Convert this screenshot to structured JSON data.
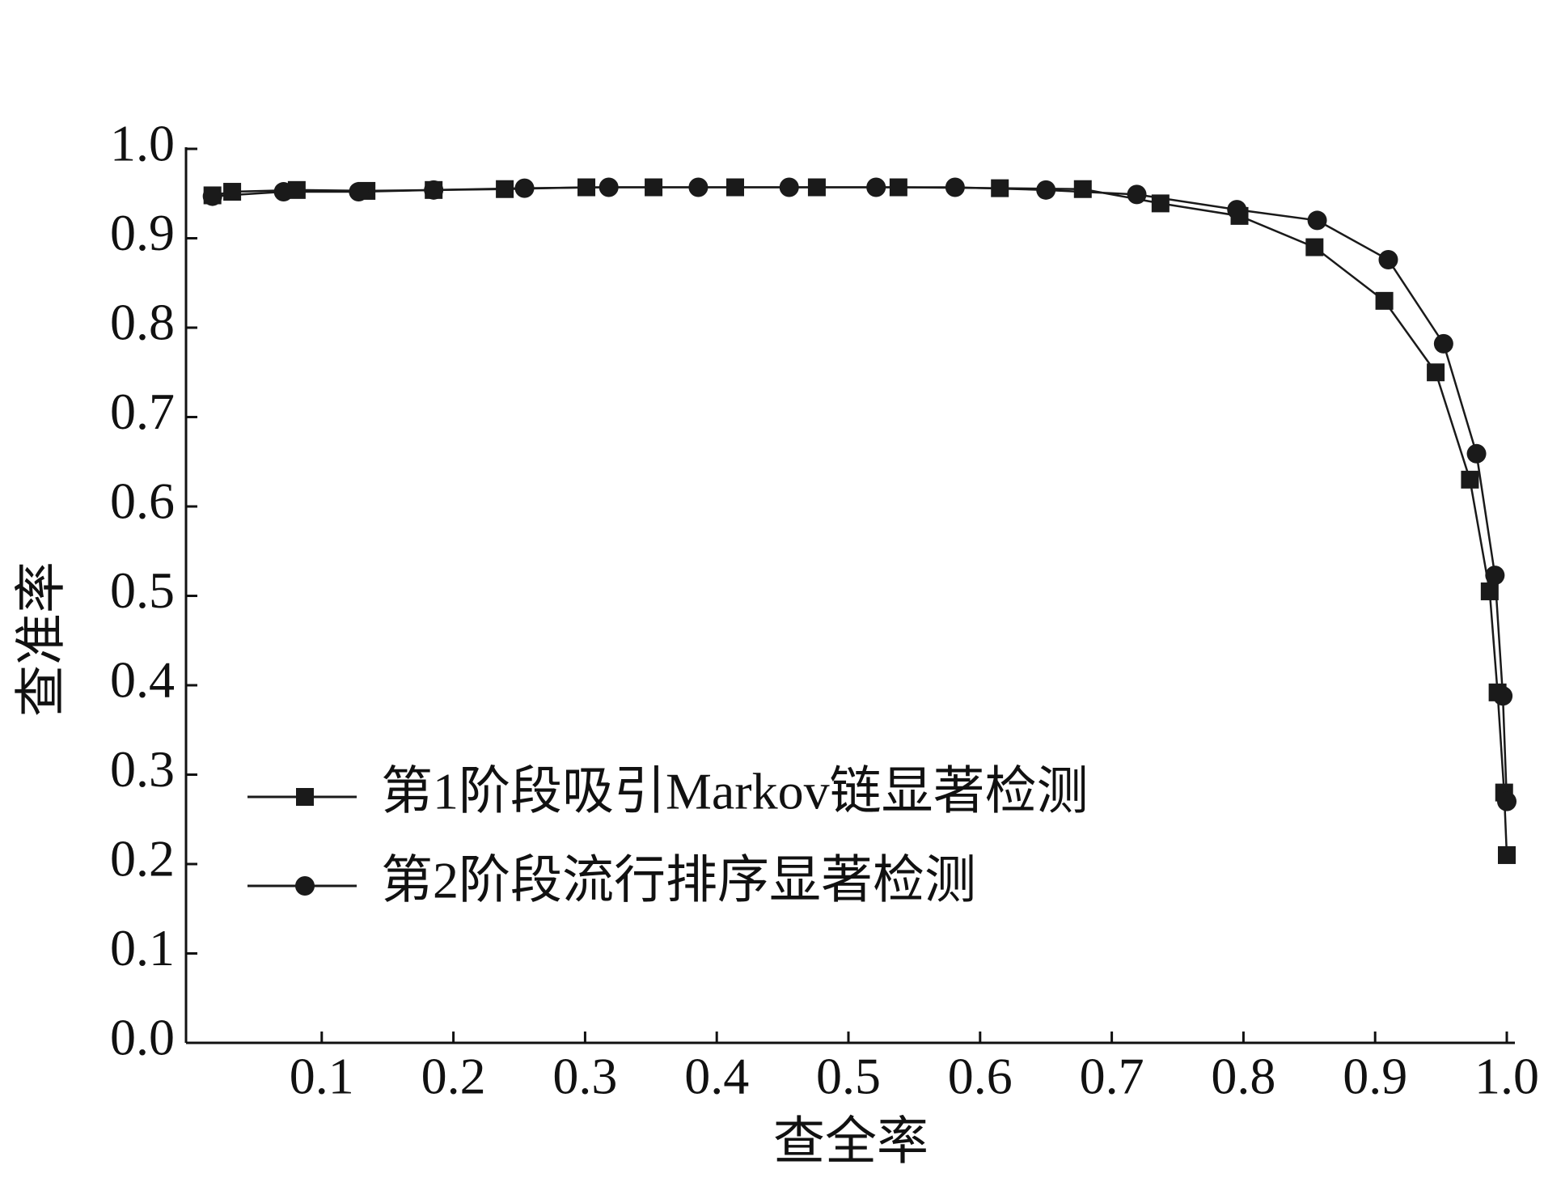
{
  "chart_data": {
    "type": "line",
    "x_label": "查全率",
    "y_label": "查准率",
    "xlim": [
      0,
      1.0
    ],
    "ylim": [
      0,
      1.0
    ],
    "xticks": [
      0.1,
      0.2,
      0.3,
      0.4,
      0.5,
      0.6,
      0.7,
      0.8,
      0.9,
      {
        "value": 1.0,
        "label": "1.0"
      }
    ],
    "yticks": [
      {
        "value": 0,
        "label": "0.0"
      },
      0.1,
      0.2,
      0.3,
      0.4,
      0.5,
      0.6,
      0.7,
      0.8,
      0.9,
      {
        "value": 1.0,
        "label": "1.0"
      }
    ],
    "legend": "lower left",
    "series": [
      {
        "name": "第1阶段吸引Markov链显著检测",
        "color": "#1a1a1a",
        "marker": "square",
        "x": [
          0.017,
          0.032,
          0.081,
          0.134,
          0.185,
          0.239,
          0.301,
          0.352,
          0.414,
          0.476,
          0.538,
          0.615,
          0.678,
          0.737,
          0.797,
          0.854,
          0.907,
          0.946,
          0.972,
          0.987,
          0.993,
          0.998,
          1.0
        ],
        "values": [
          0.948,
          0.952,
          0.954,
          0.953,
          0.954,
          0.955,
          0.957,
          0.957,
          0.957,
          0.957,
          0.957,
          0.956,
          0.955,
          0.939,
          0.925,
          0.89,
          0.83,
          0.75,
          0.63,
          0.505,
          0.392,
          0.28,
          0.21
        ]
      },
      {
        "name": "第2阶段流行排序显著检测",
        "color": "#1a1a1a",
        "marker": "circle",
        "x": [
          0.017,
          0.071,
          0.128,
          0.185,
          0.254,
          0.318,
          0.386,
          0.455,
          0.521,
          0.581,
          0.65,
          0.719,
          0.795,
          0.856,
          0.91,
          0.952,
          0.977,
          0.991,
          0.997,
          1.0
        ],
        "values": [
          0.947,
          0.952,
          0.952,
          0.954,
          0.956,
          0.957,
          0.957,
          0.957,
          0.957,
          0.957,
          0.954,
          0.949,
          0.932,
          0.92,
          0.876,
          0.782,
          0.659,
          0.523,
          0.388,
          0.27
        ]
      }
    ]
  }
}
